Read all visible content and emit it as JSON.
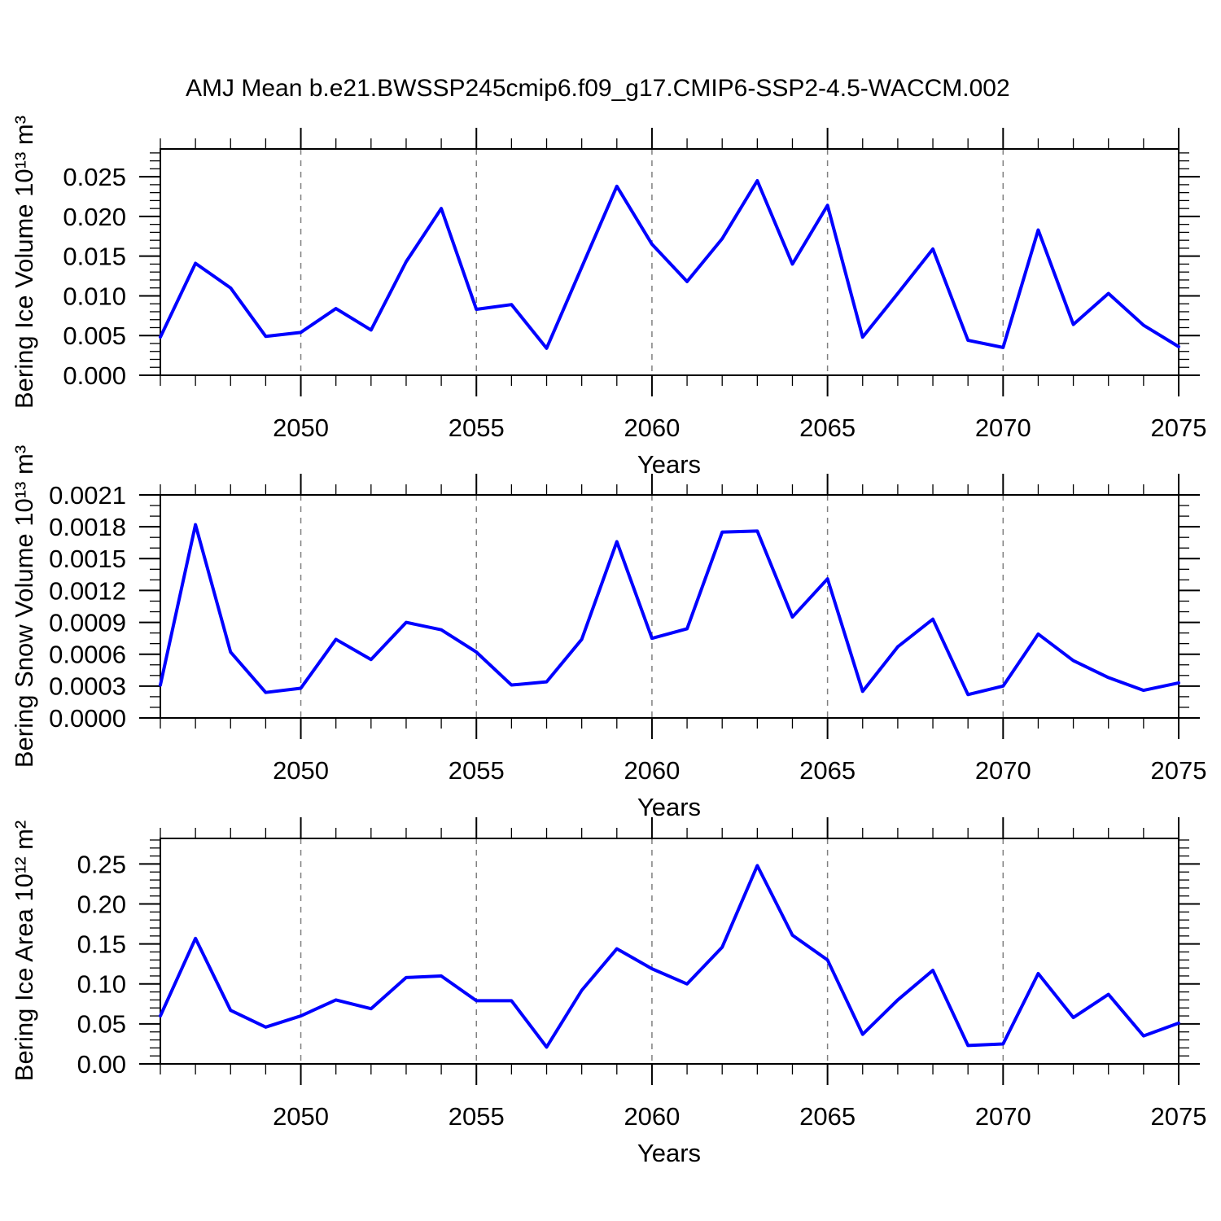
{
  "title": "AMJ Mean b.e21.BWSSP245cmip6.f09_g17.CMIP6-SSP2-4.5-WACCM.002",
  "colors": {
    "line": "#0000ff",
    "grid": "#808080",
    "axis": "#000000",
    "background": "#ffffff"
  },
  "years": [
    2046,
    2047,
    2048,
    2049,
    2050,
    2051,
    2052,
    2053,
    2054,
    2055,
    2056,
    2057,
    2058,
    2059,
    2060,
    2061,
    2062,
    2063,
    2064,
    2065,
    2066,
    2067,
    2068,
    2069,
    2070,
    2071,
    2072,
    2073,
    2074,
    2075
  ],
  "chart_data": [
    {
      "type": "line",
      "ylabel": "Bering Ice Volume 10¹³ m³",
      "xlabel": "Years",
      "x_range": [
        2046,
        2075
      ],
      "values": [
        0.0048,
        0.0141,
        0.011,
        0.0049,
        0.0054,
        0.0084,
        0.0057,
        0.0143,
        0.021,
        0.0083,
        0.0089,
        0.0034,
        0.0136,
        0.0238,
        0.0165,
        0.0118,
        0.0172,
        0.0245,
        0.014,
        0.0214,
        0.0048,
        0.0103,
        0.0159,
        0.0044,
        0.0035,
        0.0183,
        0.0064,
        0.0103,
        0.0063,
        0.0036
      ],
      "ylim": [
        0,
        0.0285
      ],
      "yticks": [
        0,
        0.005,
        0.01,
        0.015,
        0.02,
        0.025
      ],
      "ytick_labels": [
        "0.000",
        "0.005",
        "0.010",
        "0.015",
        "0.020",
        "0.025"
      ],
      "ytick_minor_step": 0.001,
      "xticks": [
        2050,
        2055,
        2060,
        2065,
        2070,
        2075
      ],
      "xtick_labels": [
        "2050",
        "2055",
        "2060",
        "2065",
        "2070",
        "2075"
      ],
      "grid_x": [
        2050,
        2055,
        2060,
        2065,
        2070
      ],
      "grid_on": true,
      "legend": null
    },
    {
      "type": "line",
      "ylabel": "Bering Snow Volume 10¹³ m³",
      "xlabel": "Years",
      "x_range": [
        2046,
        2075
      ],
      "values": [
        0.00031,
        0.00182,
        0.00062,
        0.00024,
        0.00028,
        0.00074,
        0.00055,
        0.0009,
        0.00083,
        0.00062,
        0.00031,
        0.00034,
        0.00074,
        0.00166,
        0.00075,
        0.00084,
        0.00175,
        0.00176,
        0.00095,
        0.00131,
        0.00025,
        0.00067,
        0.00093,
        0.00022,
        0.0003,
        0.00079,
        0.00054,
        0.00038,
        0.00026,
        0.00033
      ],
      "ylim": [
        0,
        0.0021
      ],
      "yticks": [
        0,
        0.0003,
        0.0006,
        0.0009,
        0.0012,
        0.0015,
        0.0018,
        0.0021
      ],
      "ytick_labels": [
        "0.0000",
        "0.0003",
        "0.0006",
        "0.0009",
        "0.0012",
        "0.0015",
        "0.0018",
        "0.0021"
      ],
      "ytick_minor_step": 0.0001,
      "xticks": [
        2050,
        2055,
        2060,
        2065,
        2070,
        2075
      ],
      "xtick_labels": [
        "2050",
        "2055",
        "2060",
        "2065",
        "2070",
        "2075"
      ],
      "grid_x": [
        2050,
        2055,
        2060,
        2065,
        2070
      ],
      "grid_on": true,
      "legend": null
    },
    {
      "type": "line",
      "ylabel": "Bering Ice Area 10¹² m²",
      "xlabel": "Years",
      "x_range": [
        2046,
        2075
      ],
      "values": [
        0.06,
        0.157,
        0.067,
        0.046,
        0.06,
        0.08,
        0.069,
        0.108,
        0.11,
        0.079,
        0.079,
        0.021,
        0.092,
        0.144,
        0.119,
        0.1,
        0.146,
        0.248,
        0.161,
        0.13,
        0.037,
        0.08,
        0.117,
        0.023,
        0.025,
        0.113,
        0.058,
        0.087,
        0.035,
        0.051
      ],
      "ylim": [
        0,
        0.282
      ],
      "yticks": [
        0,
        0.05,
        0.1,
        0.15,
        0.2,
        0.25
      ],
      "ytick_labels": [
        "0.00",
        "0.05",
        "0.10",
        "0.15",
        "0.20",
        "0.25"
      ],
      "ytick_minor_step": 0.01,
      "xticks": [
        2050,
        2055,
        2060,
        2065,
        2070,
        2075
      ],
      "xtick_labels": [
        "2050",
        "2055",
        "2060",
        "2065",
        "2070",
        "2075"
      ],
      "grid_x": [
        2050,
        2055,
        2060,
        2065,
        2070
      ],
      "grid_on": true,
      "legend": null
    }
  ]
}
